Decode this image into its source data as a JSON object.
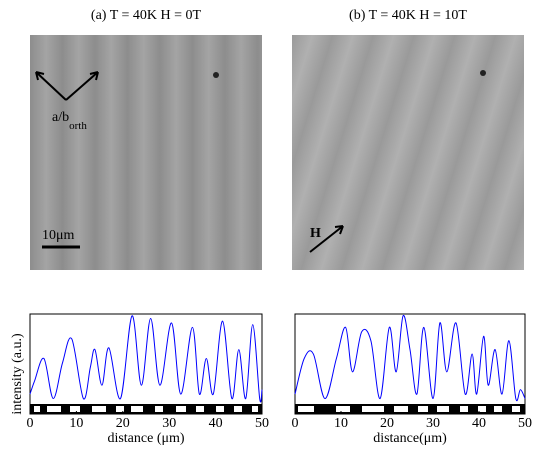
{
  "panels": [
    {
      "title": "(a) T = 40K H = 0T",
      "orientation_label": "a/b",
      "orientation_subscript": "orth",
      "scale_label": "10μm"
    },
    {
      "title": "(b) T = 40K H = 10T",
      "field_label": "H"
    }
  ],
  "chart_data": [
    {
      "type": "line",
      "ylabel": "intensity (a.u.)",
      "xlabel": "distance (μm)",
      "color": "#0000ff",
      "x": [
        0,
        1,
        3,
        5,
        7,
        9,
        11.5,
        13,
        14,
        15.5,
        17,
        19.5,
        22,
        24,
        26,
        28,
        30.5,
        32.5,
        35,
        36.5,
        38,
        39.5,
        41.5,
        43.5,
        45,
        46.5,
        48,
        49.5,
        50
      ],
      "values": [
        0.1,
        0.25,
        0.5,
        0.05,
        0.45,
        0.72,
        0.05,
        0.4,
        0.6,
        0.2,
        0.62,
        0.05,
        0.98,
        0.2,
        0.95,
        0.2,
        0.9,
        0.1,
        0.85,
        0.1,
        0.5,
        0.1,
        0.92,
        0.05,
        0.6,
        0.05,
        0.88,
        0.05,
        0.15
      ],
      "xlim": [
        0,
        50
      ],
      "xticks": [
        0,
        10,
        20,
        30,
        40,
        50
      ],
      "ylim": [
        0,
        1
      ]
    },
    {
      "type": "line",
      "xlabel": "distance(μm)",
      "color": "#0000ff",
      "x": [
        0,
        2,
        4,
        6.5,
        9,
        11,
        12.5,
        14.5,
        16.5,
        18.5,
        20.5,
        22,
        23.5,
        25,
        26.5,
        28,
        30,
        31.5,
        33,
        35,
        37,
        38.5,
        39.5,
        41,
        42,
        43.5,
        45,
        46.5,
        48,
        49,
        50
      ],
      "values": [
        0.1,
        0.5,
        0.55,
        0.05,
        0.5,
        0.85,
        0.35,
        0.8,
        0.7,
        0.05,
        0.85,
        0.35,
        0.98,
        0.6,
        0.1,
        0.85,
        0.05,
        0.9,
        0.35,
        0.9,
        0.1,
        0.55,
        0.1,
        0.75,
        0.2,
        0.6,
        0.1,
        0.7,
        0.05,
        0.15,
        0.05
      ],
      "xlim": [
        0,
        50
      ],
      "xticks": [
        0,
        10,
        20,
        30,
        40,
        50
      ],
      "ylim": [
        0,
        1
      ]
    }
  ]
}
